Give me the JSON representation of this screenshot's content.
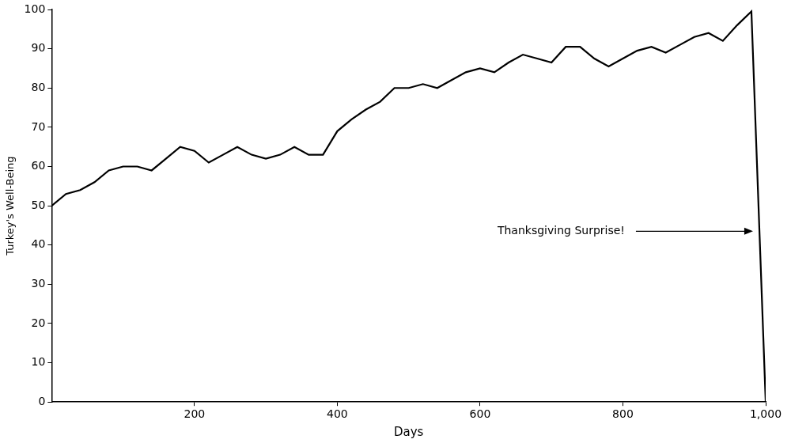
{
  "chart_data": {
    "type": "line",
    "x_label": "Days",
    "y_label": "Turkey's Well-Being",
    "annotation": "Thanksgiving Surprise!",
    "x": [
      0,
      20,
      40,
      60,
      80,
      100,
      120,
      140,
      160,
      180,
      200,
      220,
      240,
      260,
      280,
      300,
      320,
      340,
      360,
      380,
      400,
      420,
      440,
      460,
      480,
      500,
      520,
      540,
      560,
      580,
      600,
      620,
      640,
      660,
      680,
      700,
      720,
      740,
      760,
      780,
      800,
      820,
      840,
      860,
      880,
      900,
      920,
      940,
      960,
      980,
      1000
    ],
    "values": [
      50,
      53,
      54,
      56,
      59,
      60,
      60,
      59,
      62,
      65,
      64,
      61,
      63,
      65,
      63,
      62,
      63,
      65,
      63,
      63,
      69,
      72,
      74.5,
      76.5,
      80,
      80,
      81,
      80,
      82,
      84,
      85,
      84,
      86.5,
      88.5,
      87.5,
      86.5,
      90.5,
      90.5,
      87.5,
      85.5,
      87.5,
      89.5,
      90.5,
      89,
      91,
      93,
      94,
      92,
      96,
      99.5,
      0
    ],
    "color": "#000000",
    "xlim": [
      0,
      1000
    ],
    "xticks": [
      200,
      400,
      600,
      800,
      {
        "value": 1000,
        "label": "1,000"
      }
    ],
    "ylim": [
      0,
      100
    ],
    "yticks": [
      0,
      10,
      20,
      30,
      40,
      50,
      60,
      70,
      80,
      90,
      100
    ],
    "grid": false
  }
}
